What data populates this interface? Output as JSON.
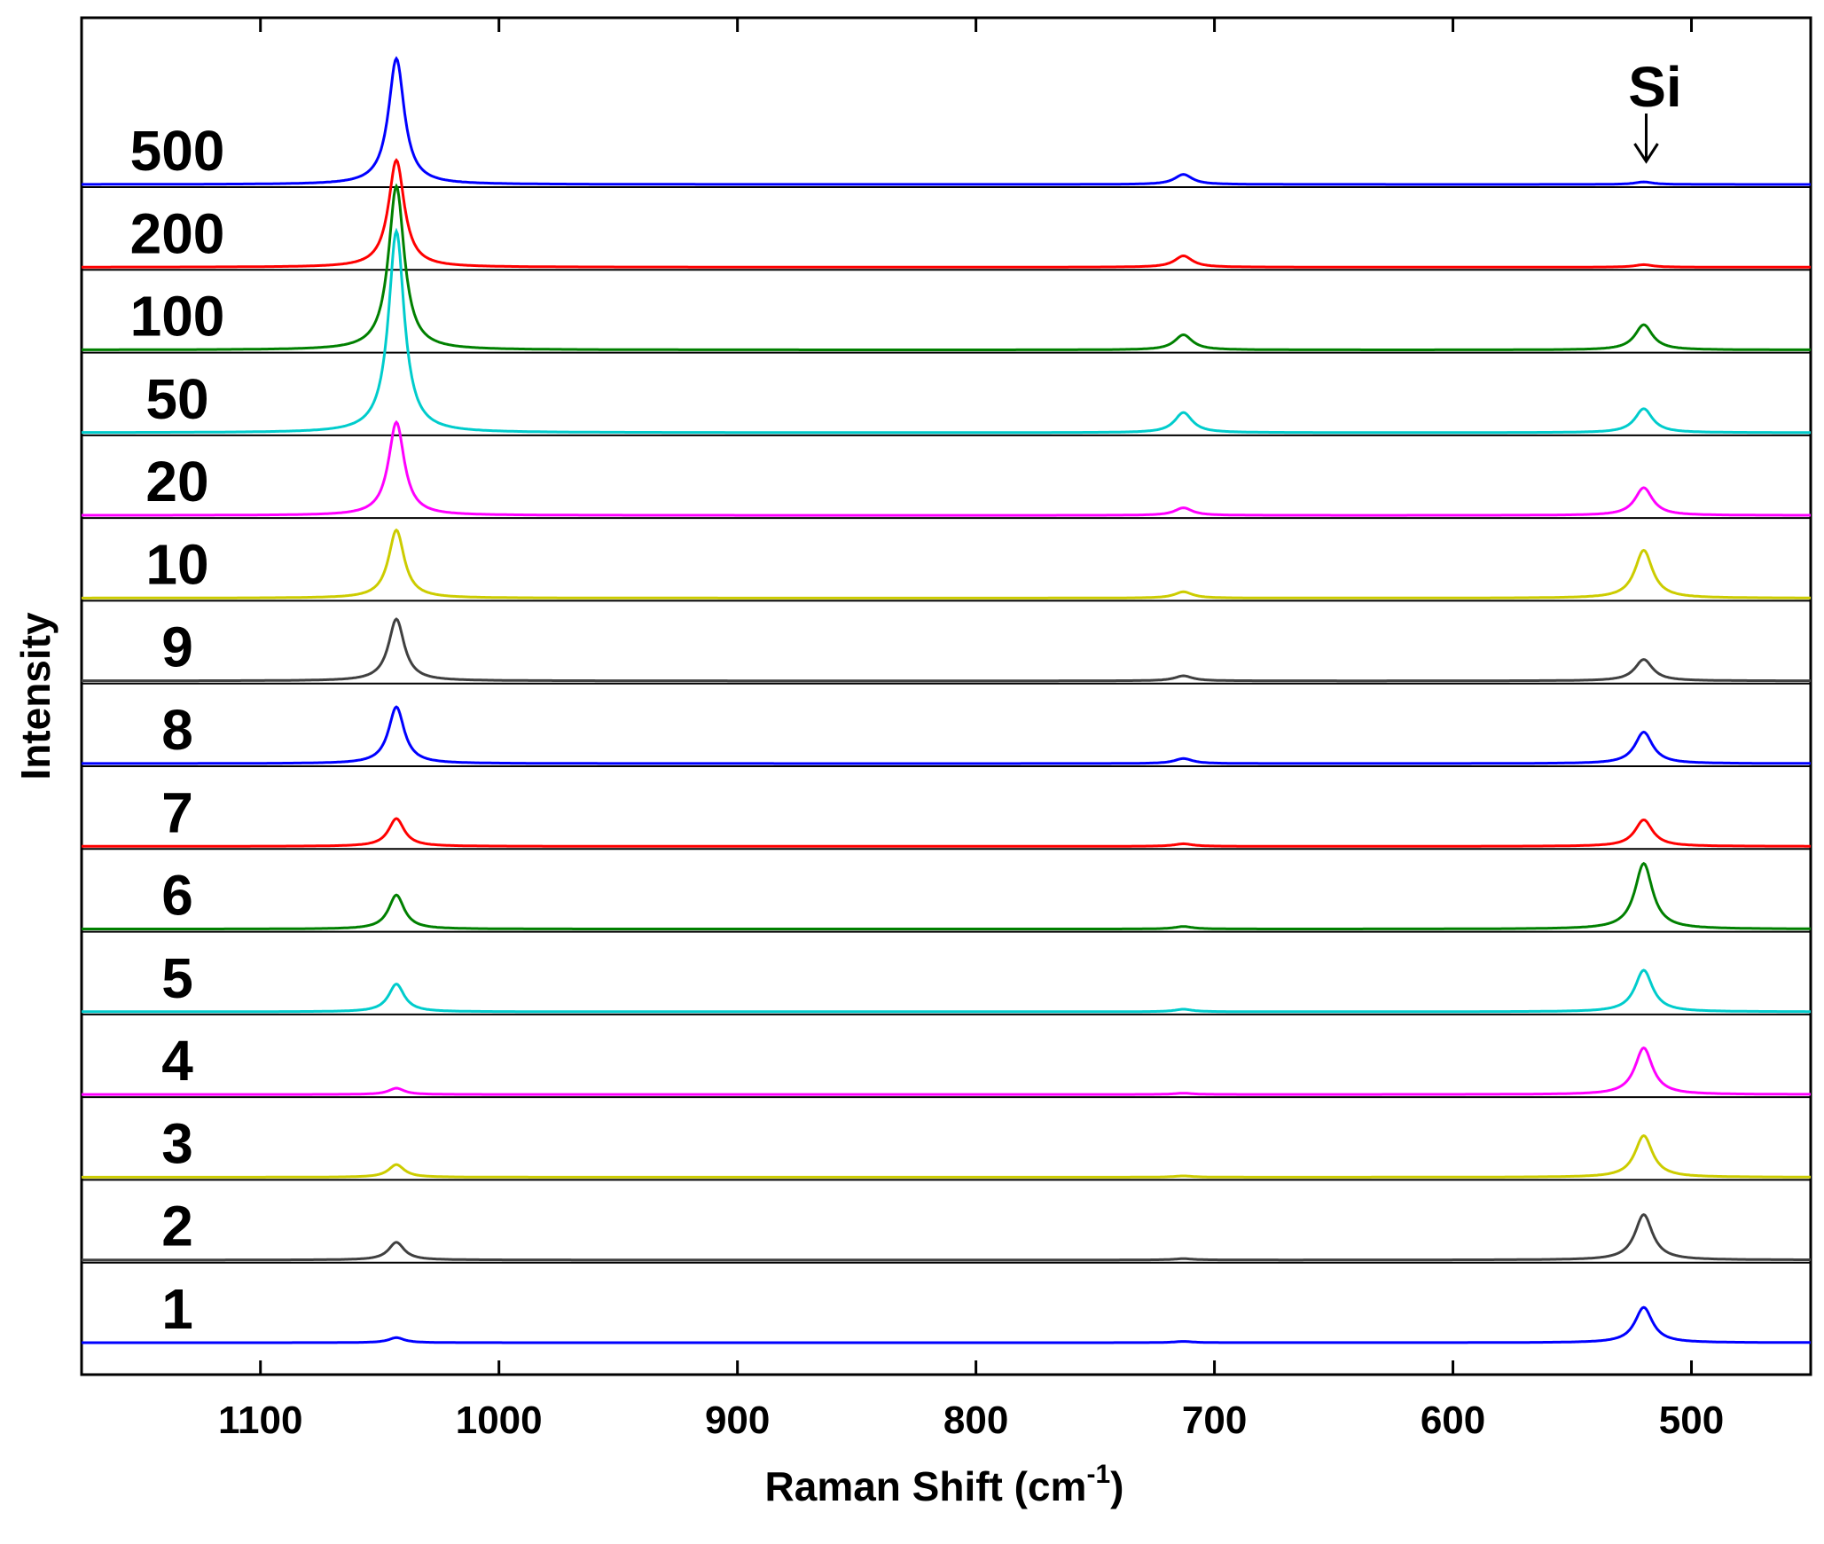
{
  "chart_data": {
    "type": "line",
    "title": "",
    "xlabel": "Raman Shift (cm",
    "xlabel_sup": "-1",
    "xlabel_close": ")",
    "ylabel": "Intensity",
    "xlim": [
      1175,
      450
    ],
    "x_reversed": true,
    "x_ticks": [
      1100,
      1000,
      900,
      800,
      700,
      600,
      500
    ],
    "y_ticks": [],
    "stacked": true,
    "series": [
      {
        "name": "500",
        "color": "#0000ff",
        "peaks": [
          {
            "x": 1043,
            "h": 1.0,
            "w": 4.0
          },
          {
            "x": 713,
            "h": 0.08,
            "w": 4.5
          },
          {
            "x": 520,
            "h": 0.02,
            "w": 4.5
          }
        ]
      },
      {
        "name": "200",
        "color": "#ff0000",
        "peaks": [
          {
            "x": 1043,
            "h": 0.85,
            "w": 4.0
          },
          {
            "x": 713,
            "h": 0.09,
            "w": 4.5
          },
          {
            "x": 520,
            "h": 0.02,
            "w": 4.5
          }
        ]
      },
      {
        "name": "100",
        "color": "#008000",
        "peaks": [
          {
            "x": 1043,
            "h": 1.3,
            "w": 4.0
          },
          {
            "x": 713,
            "h": 0.12,
            "w": 4.5
          },
          {
            "x": 520,
            "h": 0.2,
            "w": 4.5
          }
        ]
      },
      {
        "name": "50",
        "color": "#00cccc",
        "peaks": [
          {
            "x": 1043,
            "h": 1.6,
            "w": 4.0
          },
          {
            "x": 713,
            "h": 0.16,
            "w": 4.5
          },
          {
            "x": 520,
            "h": 0.19,
            "w": 4.5
          }
        ]
      },
      {
        "name": "20",
        "color": "#ff00ff",
        "peaks": [
          {
            "x": 1043,
            "h": 0.74,
            "w": 4.0
          },
          {
            "x": 713,
            "h": 0.06,
            "w": 4.5
          },
          {
            "x": 520,
            "h": 0.22,
            "w": 4.5
          }
        ]
      },
      {
        "name": "10",
        "color": "#cccc00",
        "peaks": [
          {
            "x": 1043,
            "h": 0.54,
            "w": 4.0
          },
          {
            "x": 713,
            "h": 0.05,
            "w": 4.5
          },
          {
            "x": 520,
            "h": 0.38,
            "w": 4.5
          }
        ]
      },
      {
        "name": "9",
        "color": "#404040",
        "peaks": [
          {
            "x": 1043,
            "h": 0.49,
            "w": 4.0
          },
          {
            "x": 713,
            "h": 0.04,
            "w": 4.5
          },
          {
            "x": 520,
            "h": 0.17,
            "w": 4.5
          }
        ]
      },
      {
        "name": "8",
        "color": "#0000ff",
        "peaks": [
          {
            "x": 1043,
            "h": 0.45,
            "w": 4.0
          },
          {
            "x": 713,
            "h": 0.04,
            "w": 4.5
          },
          {
            "x": 520,
            "h": 0.25,
            "w": 4.5
          }
        ]
      },
      {
        "name": "7",
        "color": "#ff0000",
        "peaks": [
          {
            "x": 1043,
            "h": 0.22,
            "w": 4.0
          },
          {
            "x": 713,
            "h": 0.02,
            "w": 4.5
          },
          {
            "x": 520,
            "h": 0.21,
            "w": 4.5
          }
        ]
      },
      {
        "name": "6",
        "color": "#008000",
        "peaks": [
          {
            "x": 1043,
            "h": 0.27,
            "w": 4.0
          },
          {
            "x": 713,
            "h": 0.02,
            "w": 4.5
          },
          {
            "x": 520,
            "h": 0.52,
            "w": 4.5
          }
        ]
      },
      {
        "name": "5",
        "color": "#00cccc",
        "peaks": [
          {
            "x": 1043,
            "h": 0.22,
            "w": 4.0
          },
          {
            "x": 713,
            "h": 0.02,
            "w": 4.5
          },
          {
            "x": 520,
            "h": 0.33,
            "w": 4.5
          }
        ]
      },
      {
        "name": "4",
        "color": "#ff00ff",
        "peaks": [
          {
            "x": 1043,
            "h": 0.05,
            "w": 4.0
          },
          {
            "x": 713,
            "h": 0.01,
            "w": 4.5
          },
          {
            "x": 520,
            "h": 0.37,
            "w": 4.5
          }
        ]
      },
      {
        "name": "3",
        "color": "#cccc00",
        "peaks": [
          {
            "x": 1043,
            "h": 0.1,
            "w": 4.0
          },
          {
            "x": 713,
            "h": 0.01,
            "w": 4.5
          },
          {
            "x": 520,
            "h": 0.33,
            "w": 4.5
          }
        ]
      },
      {
        "name": "2",
        "color": "#404040",
        "peaks": [
          {
            "x": 1043,
            "h": 0.14,
            "w": 4.0
          },
          {
            "x": 713,
            "h": 0.01,
            "w": 4.5
          },
          {
            "x": 520,
            "h": 0.36,
            "w": 4.5
          }
        ]
      },
      {
        "name": "1",
        "color": "#0000ff",
        "peaks": [
          {
            "x": 1043,
            "h": 0.04,
            "w": 4.0
          },
          {
            "x": 713,
            "h": 0.01,
            "w": 4.5
          },
          {
            "x": 520,
            "h": 0.28,
            "w": 4.5
          }
        ]
      }
    ],
    "annotations": [
      {
        "text": "Si",
        "x": 516,
        "arrow": "down"
      }
    ]
  }
}
